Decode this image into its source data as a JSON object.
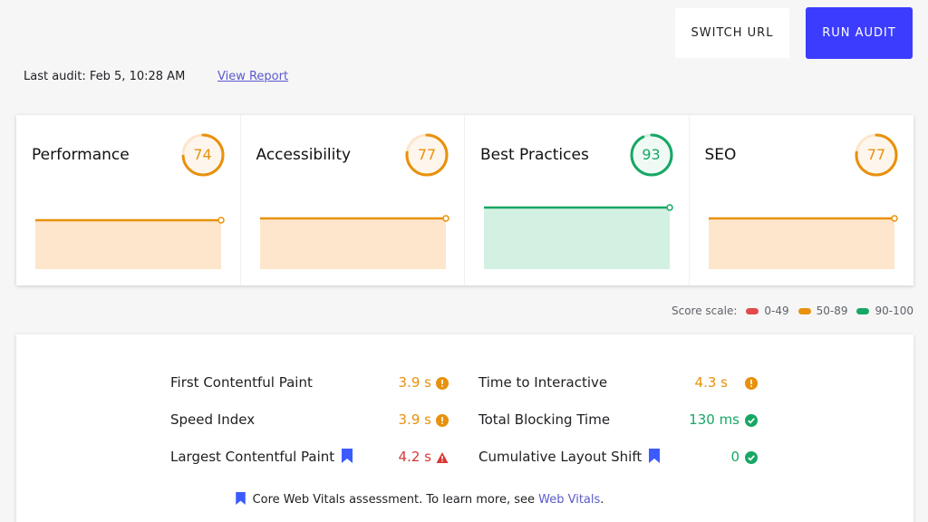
{
  "header": {
    "switch_url": "SWITCH URL",
    "run_audit": "RUN AUDIT",
    "last_audit": "Last audit: Feb 5, 10:28 AM",
    "view_report": "View Report"
  },
  "colors": {
    "orange": "#e8910c",
    "orange_fill": "#fde6cc",
    "green": "#17a765",
    "green_fill": "#d3f1e2",
    "red": "#e24b4b",
    "accent": "#3c3cff"
  },
  "cards": [
    {
      "title": "Performance",
      "score": "74",
      "score_value": 74,
      "color": "#e8910c",
      "fill": "#fde6cc"
    },
    {
      "title": "Accessibility",
      "score": "77",
      "score_value": 77,
      "color": "#e8910c",
      "fill": "#fde6cc"
    },
    {
      "title": "Best Practices",
      "score": "93",
      "score_value": 93,
      "color": "#17a765",
      "fill": "#d3f1e2"
    },
    {
      "title": "SEO",
      "score": "77",
      "score_value": 77,
      "color": "#e8910c",
      "fill": "#fde6cc"
    }
  ],
  "scale": {
    "label": "Score scale:",
    "items": [
      {
        "range": "0-49",
        "color": "#e24b4b"
      },
      {
        "range": "50-89",
        "color": "#e8910c"
      },
      {
        "range": "90-100",
        "color": "#17a765"
      }
    ]
  },
  "metrics": [
    {
      "label": "First Contentful Paint",
      "value": "3.9 s",
      "status": "average",
      "color": "#e8910c",
      "core": false
    },
    {
      "label": "Speed Index",
      "value": "3.9 s",
      "status": "average",
      "color": "#e8910c",
      "core": false
    },
    {
      "label": "Largest Contentful Paint",
      "value": "4.2 s",
      "status": "fail",
      "color": "#d93636",
      "core": true
    },
    {
      "label": "Time to Interactive",
      "value": "4.3 s",
      "status": "average",
      "color": "#e8910c",
      "core": false
    },
    {
      "label": "Total Blocking Time",
      "value": "130 ms",
      "status": "pass",
      "color": "#17a765",
      "core": false
    },
    {
      "label": "Cumulative Layout Shift",
      "value": "0",
      "status": "pass",
      "color": "#17a765",
      "core": true
    }
  ],
  "note": {
    "text": "Core Web Vitals assessment. To learn more, see ",
    "link": "Web Vitals",
    "end": "."
  }
}
